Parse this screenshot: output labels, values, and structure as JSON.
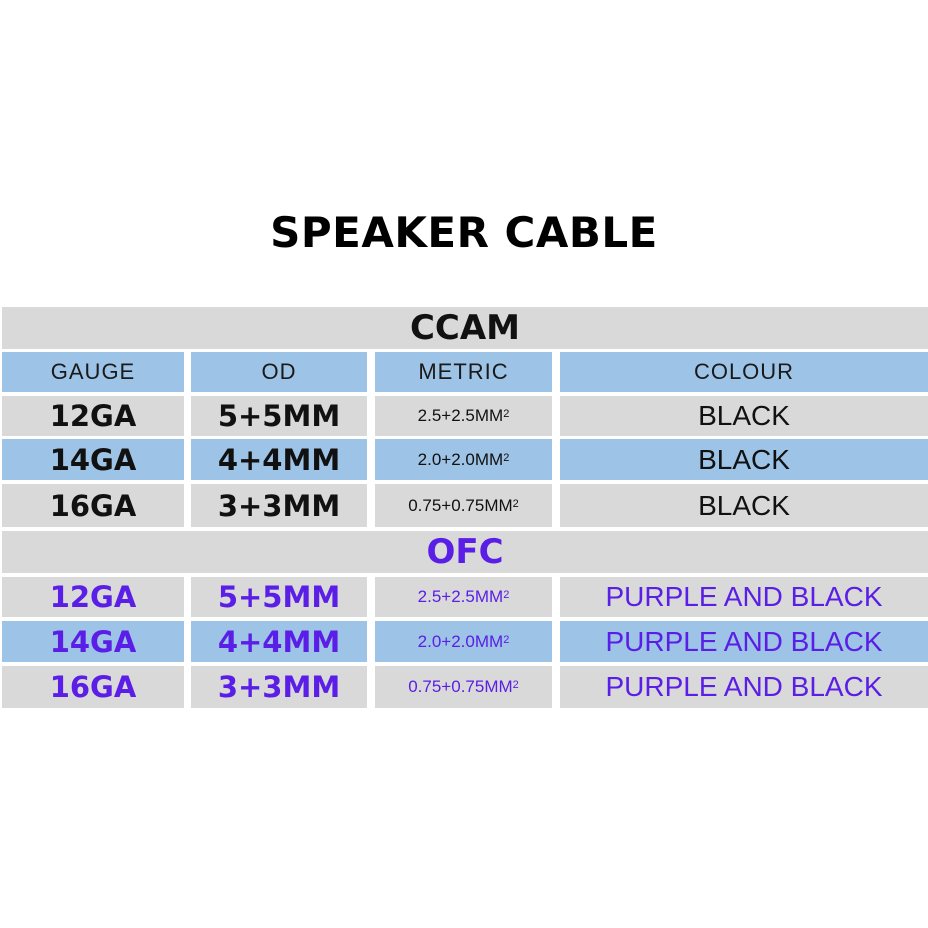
{
  "title": "SPEAKER CABLE",
  "colors": {
    "gray": "#d9d9d9",
    "blue": "#9dc3e6",
    "purple": "#5b1ee6"
  },
  "headers": [
    "GAUGE",
    "OD",
    "METRIC",
    "COLOUR"
  ],
  "sections": [
    {
      "name": "CCAM",
      "rows": [
        {
          "gauge": "12GA",
          "od": "5+5MM",
          "metric": "2.5+2.5MM",
          "metric_sup": "2",
          "colour": "BLACK"
        },
        {
          "gauge": "14GA",
          "od": "4+4MM",
          "metric": "2.0+2.0MM",
          "metric_sup": "2",
          "colour": "BLACK"
        },
        {
          "gauge": "16GA",
          "od": "3+3MM",
          "metric": "0.75+0.75MM",
          "metric_sup": "2",
          "colour": "BLACK"
        }
      ]
    },
    {
      "name": "OFC",
      "rows": [
        {
          "gauge": "12GA",
          "od": "5+5MM",
          "metric": "2.5+2.5MM",
          "metric_sup": "2",
          "colour": "PURPLE AND BLACK"
        },
        {
          "gauge": "14GA",
          "od": "4+4MM",
          "metric": "2.0+2.0MM",
          "metric_sup": "2",
          "colour": "PURPLE AND BLACK"
        },
        {
          "gauge": "16GA",
          "od": "3+3MM",
          "metric": "0.75+0.75MM",
          "metric_sup": "2",
          "colour": "PURPLE AND BLACK"
        }
      ]
    }
  ]
}
